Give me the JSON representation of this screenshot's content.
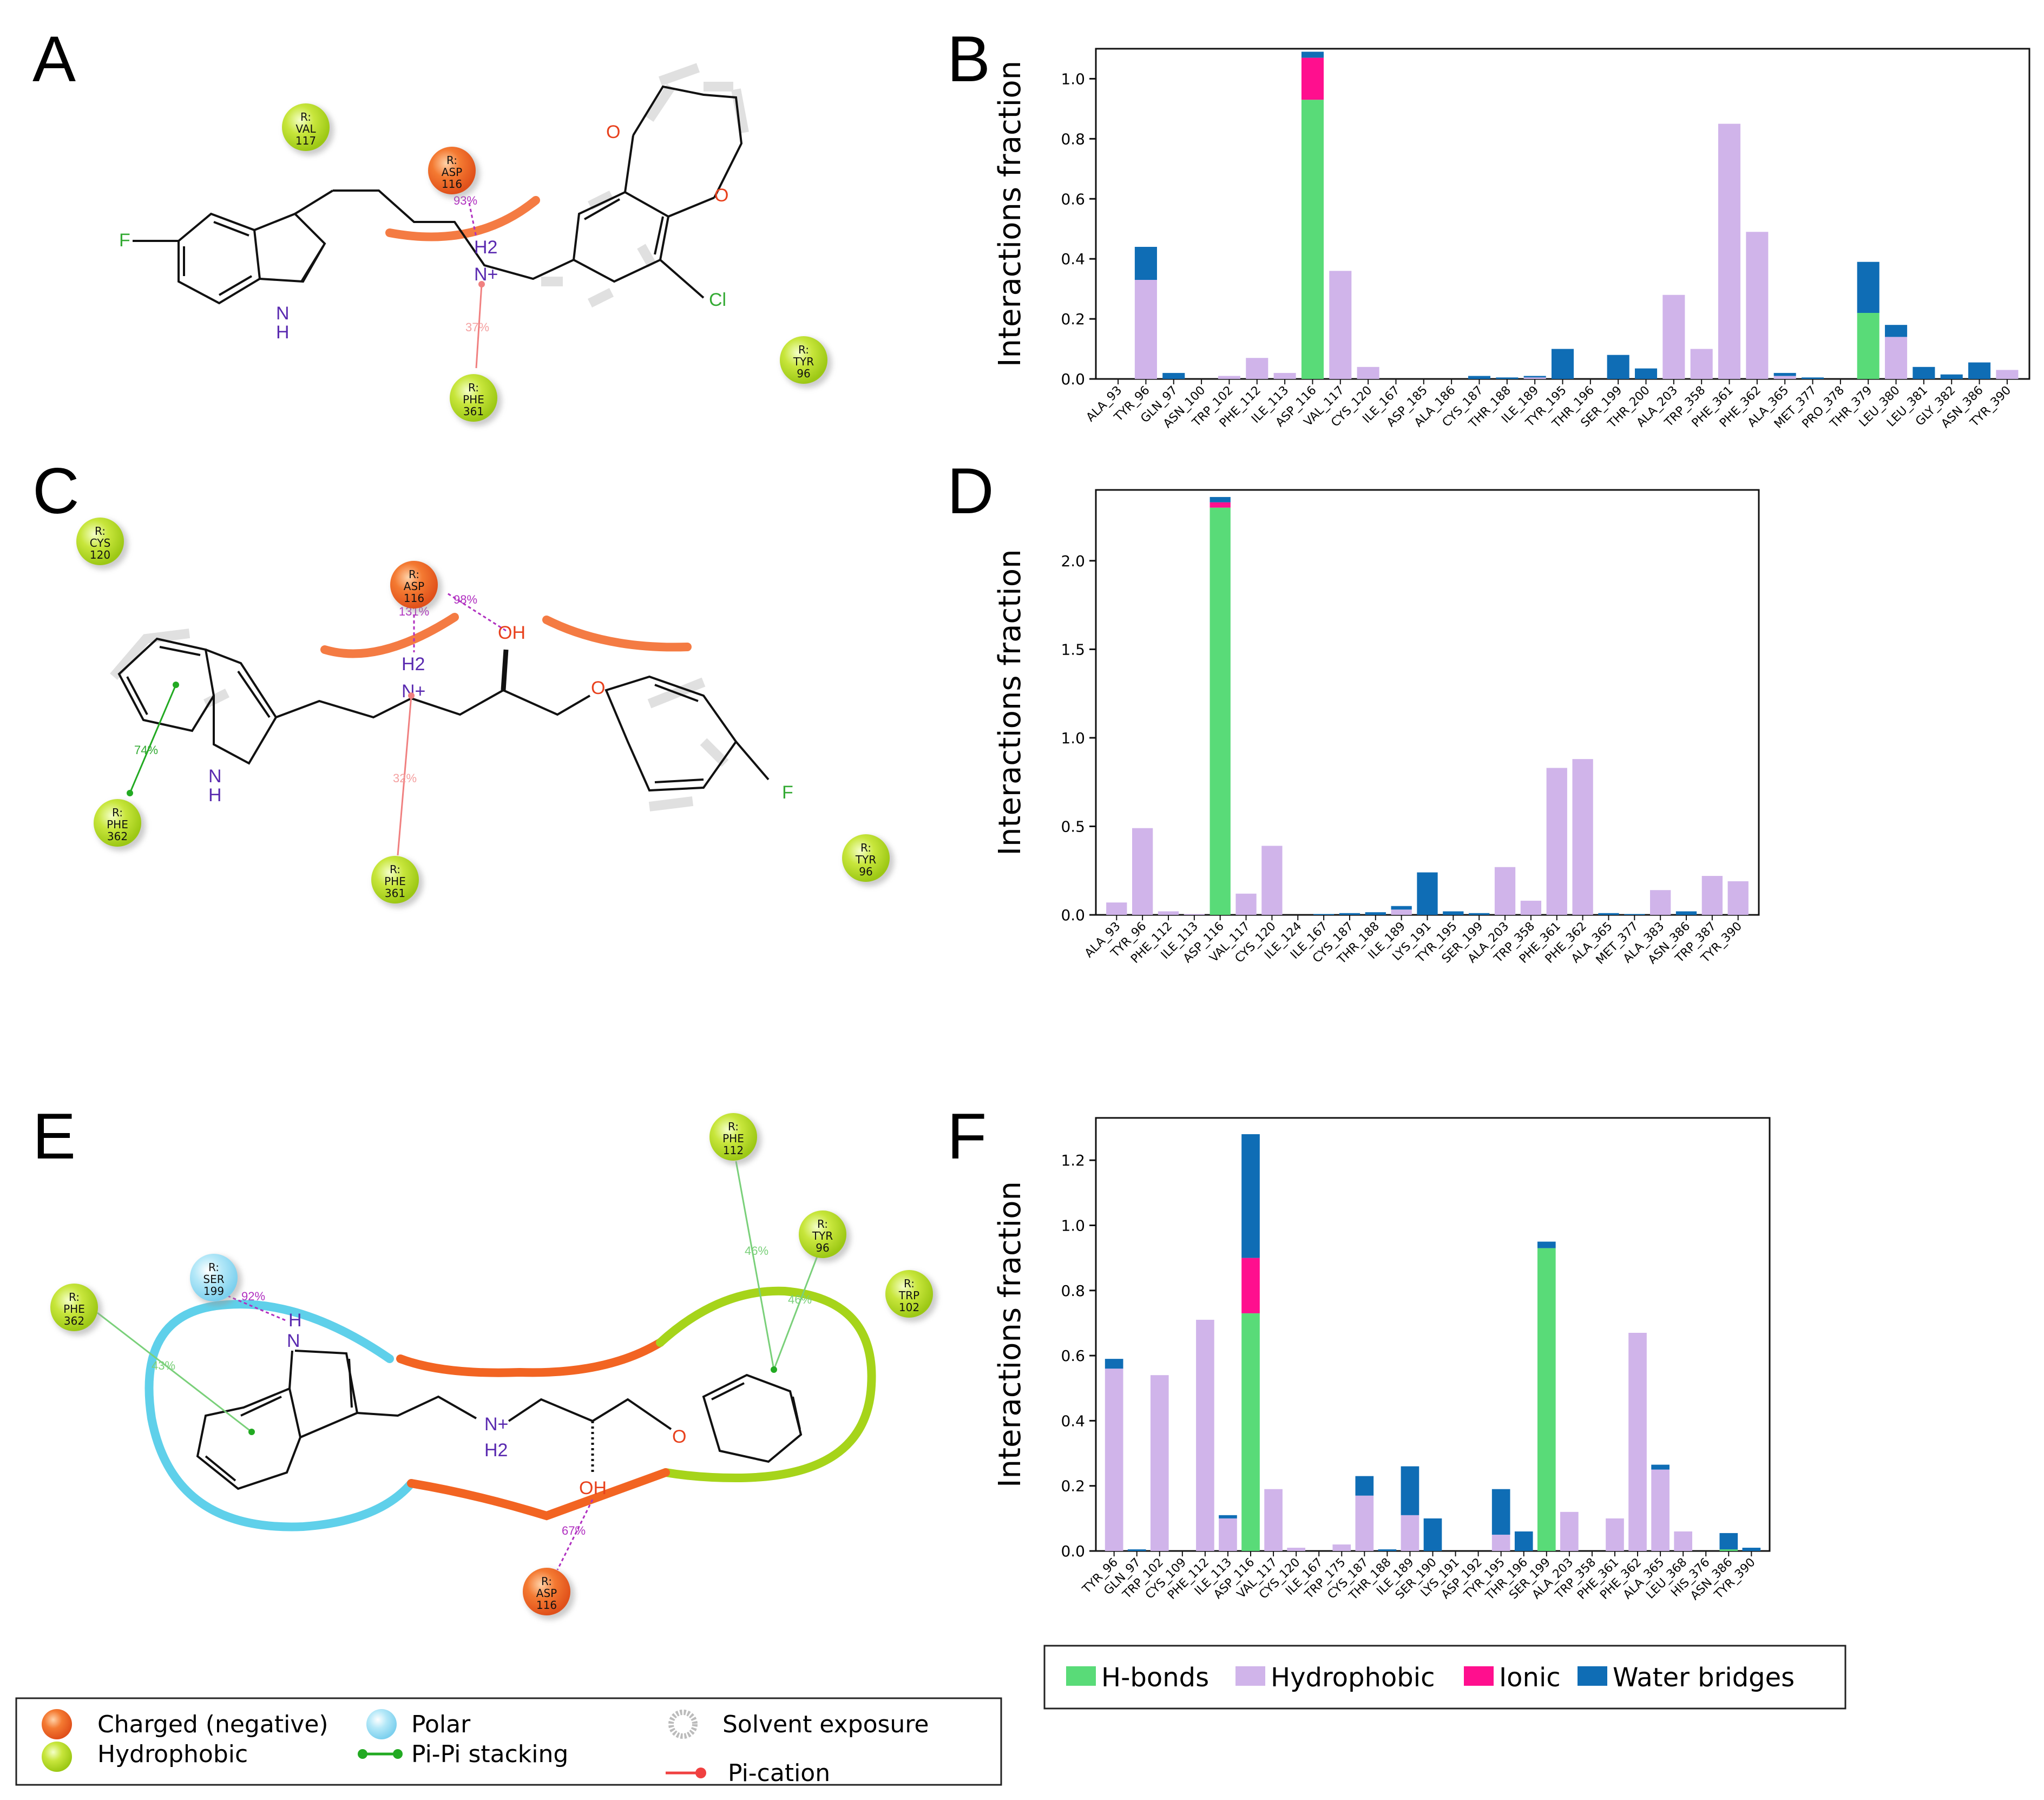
{
  "panel_letters": [
    "A",
    "B",
    "C",
    "D",
    "E",
    "F"
  ],
  "colors": {
    "hbonds": "#59db78",
    "hydrophobic": "#d0b4ea",
    "ionic": "#ff0f8e",
    "water": "#0f6db5",
    "charged": "#f26422",
    "hydrophobic_res": "#b4dc1e",
    "polar": "#8fd8f2",
    "pipi": "#22aa22",
    "pication": "#f04040"
  },
  "series_names": [
    "H-bonds",
    "Hydrophobic",
    "Ionic",
    "Water bridges"
  ],
  "diagram_A": {
    "residues": [
      {
        "lines": [
          "R:",
          "VAL",
          "117"
        ],
        "kind": "hydrophobic"
      },
      {
        "lines": [
          "R:",
          "ASP",
          "116"
        ],
        "kind": "charged"
      },
      {
        "lines": [
          "R:",
          "PHE",
          "361"
        ],
        "kind": "hydrophobic"
      },
      {
        "lines": [
          "R:",
          "TYR",
          "96"
        ],
        "kind": "hydrophobic"
      }
    ],
    "atoms": [
      "F",
      "N",
      "H",
      "H2",
      "N+",
      "O",
      "O",
      "Cl"
    ],
    "pcts": [
      "93%",
      "37%"
    ]
  },
  "diagram_C": {
    "residues": [
      {
        "lines": [
          "R:",
          "CYS",
          "120"
        ],
        "kind": "hydrophobic"
      },
      {
        "lines": [
          "R:",
          "ASP",
          "116"
        ],
        "kind": "charged"
      },
      {
        "lines": [
          "R:",
          "PHE",
          "362"
        ],
        "kind": "hydrophobic"
      },
      {
        "lines": [
          "R:",
          "PHE",
          "361"
        ],
        "kind": "hydrophobic"
      },
      {
        "lines": [
          "R:",
          "TYR",
          "96"
        ],
        "kind": "hydrophobic"
      }
    ],
    "atoms": [
      "OH",
      "H2",
      "N+",
      "O",
      "N",
      "H",
      "F"
    ],
    "pcts": [
      "131%",
      "98%",
      "74%",
      "32%"
    ]
  },
  "diagram_E": {
    "residues": [
      {
        "lines": [
          "R:",
          "PHE",
          "112"
        ],
        "kind": "hydrophobic"
      },
      {
        "lines": [
          "R:",
          "TYR",
          "96"
        ],
        "kind": "hydrophobic"
      },
      {
        "lines": [
          "R:",
          "TRP",
          "102"
        ],
        "kind": "hydrophobic"
      },
      {
        "lines": [
          "R:",
          "SER",
          "199"
        ],
        "kind": "polar"
      },
      {
        "lines": [
          "R:",
          "PHE",
          "362"
        ],
        "kind": "hydrophobic"
      },
      {
        "lines": [
          "R:",
          "ASP",
          "116"
        ],
        "kind": "charged"
      }
    ],
    "atoms": [
      "H",
      "N",
      "N+",
      "H2",
      "OH",
      "O"
    ],
    "pcts": [
      "92%",
      "46%",
      "46%",
      "43%",
      "67%"
    ]
  },
  "legend_bottom": {
    "items": [
      "Charged (negative)",
      "Hydrophobic",
      "Polar",
      "Pi-Pi stacking",
      "Solvent exposure",
      "Pi-cation"
    ]
  },
  "chart_data": [
    {
      "panel": "B",
      "type": "bar",
      "stacked": true,
      "ylabel": "Interactions fraction",
      "ylim": [
        0,
        1.1
      ],
      "yticks": [
        "0.0",
        "0.2",
        "0.4",
        "0.6",
        "0.8",
        "1.0"
      ],
      "categories": [
        "ALA_93",
        "TYR_96",
        "GLN_97",
        "ASN_100",
        "TRP_102",
        "PHE_112",
        "ILE_113",
        "ASP_116",
        "VAL_117",
        "CYS_120",
        "ILE_167",
        "ASP_185",
        "ALA_186",
        "CYS_187",
        "THR_188",
        "ILE_189",
        "TYR_195",
        "THR_196",
        "SER_199",
        "THR_200",
        "ALA_203",
        "TRP_358",
        "PHE_361",
        "PHE_362",
        "ALA_365",
        "MET_377",
        "PRO_378",
        "THR_379",
        "LEU_380",
        "LEU_381",
        "GLY_382",
        "ASN_386",
        "TYR_390"
      ],
      "series": [
        {
          "name": "H-bonds",
          "values": [
            0,
            0,
            0,
            0,
            0,
            0,
            0,
            0.93,
            0,
            0,
            0,
            0,
            0,
            0,
            0,
            0,
            0,
            0,
            0,
            0,
            0,
            0,
            0,
            0,
            0,
            0,
            0,
            0.22,
            0,
            0,
            0,
            0,
            0
          ]
        },
        {
          "name": "Hydrophobic",
          "values": [
            0,
            0.33,
            0,
            0,
            0.01,
            0.07,
            0.02,
            0,
            0.36,
            0.04,
            0,
            0,
            0,
            0,
            0,
            0.005,
            0,
            0,
            0,
            0,
            0.28,
            0.1,
            0.85,
            0.49,
            0.01,
            0,
            0,
            0,
            0.14,
            0,
            0,
            0,
            0.03
          ]
        },
        {
          "name": "Ionic",
          "values": [
            0,
            0,
            0,
            0,
            0,
            0,
            0,
            0.14,
            0,
            0,
            0,
            0,
            0,
            0,
            0,
            0,
            0,
            0,
            0,
            0,
            0,
            0,
            0,
            0,
            0,
            0,
            0,
            0,
            0,
            0,
            0,
            0,
            0
          ]
        },
        {
          "name": "Water bridges",
          "values": [
            0,
            0.11,
            0.02,
            0,
            0,
            0,
            0,
            0.02,
            0,
            0,
            0,
            0,
            0,
            0.01,
            0.005,
            0.005,
            0.1,
            0,
            0.08,
            0.035,
            0,
            0,
            0,
            0,
            0.01,
            0.005,
            0,
            0.17,
            0.04,
            0.04,
            0.015,
            0.055,
            0
          ]
        }
      ]
    },
    {
      "panel": "D",
      "type": "bar",
      "stacked": true,
      "ylabel": "Interactions fraction",
      "ylim": [
        0,
        2.4
      ],
      "yticks": [
        "0.0",
        "0.5",
        "1.0",
        "1.5",
        "2.0"
      ],
      "categories": [
        "ALA_93",
        "TYR_96",
        "PHE_112",
        "ILE_113",
        "ASP_116",
        "VAL_117",
        "CYS_120",
        "ILE_124",
        "ILE_167",
        "CYS_187",
        "THR_188",
        "ILE_189",
        "LYS_191",
        "TYR_195",
        "SER_199",
        "ALA_203",
        "TRP_358",
        "PHE_361",
        "PHE_362",
        "ALA_365",
        "MET_377",
        "ALA_383",
        "ASN_386",
        "TRP_387",
        "TYR_390"
      ],
      "series": [
        {
          "name": "H-bonds",
          "values": [
            0,
            0,
            0,
            0,
            2.3,
            0,
            0,
            0,
            0,
            0,
            0,
            0,
            0,
            0,
            0,
            0,
            0,
            0,
            0,
            0,
            0,
            0,
            0,
            0,
            0
          ]
        },
        {
          "name": "Hydrophobic",
          "values": [
            0.07,
            0.49,
            0.02,
            0.005,
            0,
            0.12,
            0.39,
            0,
            0,
            0,
            0,
            0.03,
            0,
            0,
            0,
            0.27,
            0.08,
            0.83,
            0.88,
            0,
            0,
            0.14,
            0,
            0.22,
            0.19
          ]
        },
        {
          "name": "Ionic",
          "values": [
            0,
            0,
            0,
            0,
            0.03,
            0,
            0,
            0,
            0,
            0,
            0,
            0,
            0,
            0,
            0,
            0,
            0,
            0,
            0,
            0,
            0,
            0,
            0,
            0,
            0
          ]
        },
        {
          "name": "Water bridges",
          "values": [
            0,
            0,
            0,
            0,
            0.03,
            0,
            0,
            0,
            0.005,
            0.01,
            0.015,
            0.02,
            0.24,
            0.02,
            0.01,
            0,
            0,
            0,
            0,
            0.01,
            0.005,
            0,
            0.02,
            0,
            0
          ]
        }
      ]
    },
    {
      "panel": "F",
      "type": "bar",
      "stacked": true,
      "ylabel": "Interactions fraction",
      "ylim": [
        0,
        1.33
      ],
      "yticks": [
        "0.0",
        "0.2",
        "0.4",
        "0.6",
        "0.8",
        "1.0",
        "1.2"
      ],
      "categories": [
        "TYR_96",
        "GLN_97",
        "TRP_102",
        "CYS_109",
        "PHE_112",
        "ILE_113",
        "ASP_116",
        "VAL_117",
        "CYS_120",
        "ILE_167",
        "TRP_175",
        "CYS_187",
        "THR_188",
        "ILE_189",
        "SER_190",
        "LYS_191",
        "ASP_192",
        "TYR_195",
        "THR_196",
        "SER_199",
        "ALA_203",
        "TRP_358",
        "PHE_361",
        "PHE_362",
        "ALA_365",
        "LEU_368",
        "HIS_376",
        "ASN_386",
        "TYR_390"
      ],
      "series": [
        {
          "name": "H-bonds",
          "values": [
            0,
            0,
            0,
            0,
            0,
            0,
            0.73,
            0,
            0,
            0,
            0,
            0,
            0,
            0,
            0,
            0,
            0,
            0,
            0,
            0.93,
            0,
            0,
            0,
            0,
            0,
            0,
            0,
            0.005,
            0
          ]
        },
        {
          "name": "Hydrophobic",
          "values": [
            0.56,
            0,
            0.54,
            0,
            0.71,
            0.1,
            0,
            0.19,
            0.01,
            0,
            0.02,
            0.17,
            0,
            0.11,
            0,
            0,
            0,
            0.05,
            0,
            0,
            0.12,
            0,
            0.1,
            0.67,
            0.25,
            0.06,
            0,
            0,
            0
          ]
        },
        {
          "name": "Ionic",
          "values": [
            0,
            0,
            0,
            0,
            0,
            0,
            0.17,
            0,
            0,
            0,
            0,
            0,
            0,
            0,
            0,
            0,
            0,
            0,
            0,
            0,
            0,
            0,
            0,
            0,
            0,
            0,
            0,
            0,
            0
          ]
        },
        {
          "name": "Water bridges",
          "values": [
            0.03,
            0.005,
            0,
            0,
            0,
            0.01,
            0.38,
            0,
            0,
            0,
            0,
            0.06,
            0.005,
            0.15,
            0.1,
            0,
            0,
            0.14,
            0.06,
            0.02,
            0,
            0,
            0,
            0,
            0.015,
            0,
            0,
            0.05,
            0.01
          ]
        }
      ]
    }
  ]
}
